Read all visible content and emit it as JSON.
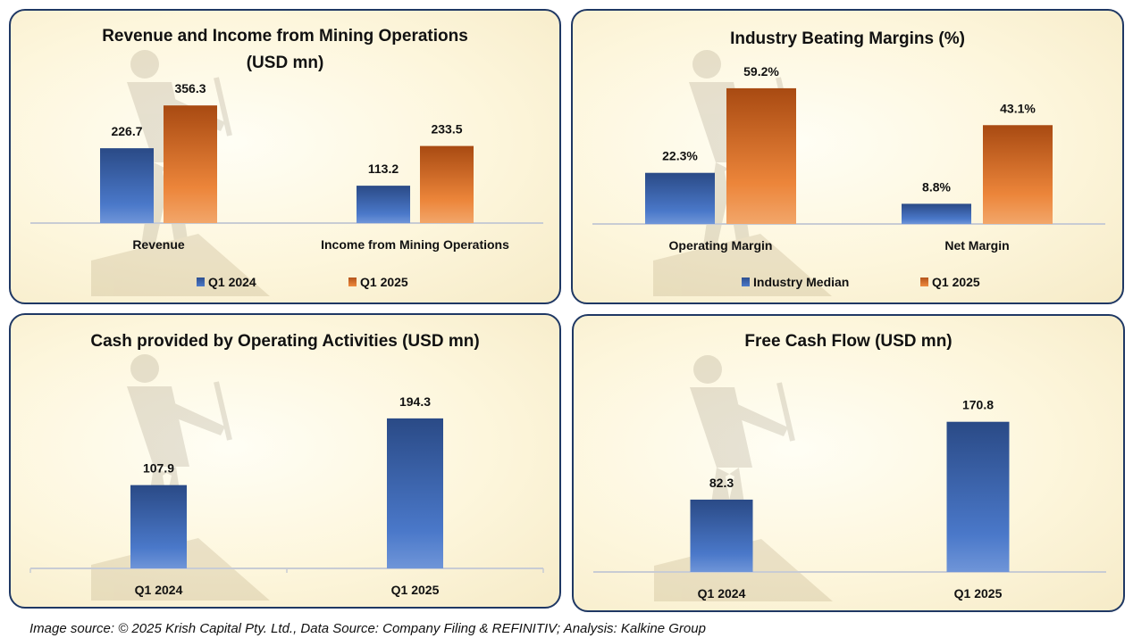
{
  "colors": {
    "blue_top": "#2a4a86",
    "blue_bottom": "#4f7fd0",
    "orange_top": "#a84a12",
    "orange_bottom": "#f09048",
    "panel_border": "#1f3864",
    "axis_line": "#c8ccd4"
  },
  "chart_data": [
    {
      "type": "bar",
      "title": "Revenue and Income from Mining Operations",
      "subtitle": "(USD mn)",
      "categories": [
        "Revenue",
        "Income from Mining Operations"
      ],
      "series": [
        {
          "name": "Q1 2024",
          "values": [
            226.7,
            113.2
          ],
          "labels": [
            "226.7",
            "113.2"
          ],
          "color": "blue"
        },
        {
          "name": "Q1 2025",
          "values": [
            356.3,
            233.5
          ],
          "labels": [
            "356.3",
            "233.5"
          ],
          "color": "orange"
        }
      ],
      "xlabel": "",
      "ylabel": "",
      "ylim": [
        0,
        400
      ],
      "grid": false,
      "legend": "bottom"
    },
    {
      "type": "bar",
      "title": "Industry Beating Margins (%)",
      "categories": [
        "Operating Margin",
        "Net Margin"
      ],
      "series": [
        {
          "name": "Industry Median",
          "values": [
            22.3,
            8.8
          ],
          "labels": [
            "22.3%",
            "8.8%"
          ],
          "color": "blue"
        },
        {
          "name": "Q1 2025",
          "values": [
            59.2,
            43.1
          ],
          "labels": [
            "59.2%",
            "43.1%"
          ],
          "color": "orange"
        }
      ],
      "xlabel": "",
      "ylabel": "",
      "ylim": [
        0,
        65
      ],
      "grid": false,
      "legend": "bottom"
    },
    {
      "type": "bar",
      "title": "Cash provided by Operating Activities (USD mn)",
      "categories": [
        "Q1 2024",
        "Q1 2025"
      ],
      "series": [
        {
          "name": "Cash provided by Operating Activities",
          "values": [
            107.9,
            194.3
          ],
          "labels": [
            "107.9",
            "194.3"
          ],
          "color": "blue"
        }
      ],
      "xlabel": "",
      "ylabel": "",
      "ylim": [
        0,
        230
      ],
      "grid": false,
      "legend": "none"
    },
    {
      "type": "bar",
      "title": "Free Cash Flow  (USD mn)",
      "categories": [
        "Q1 2024",
        "Q1 2025"
      ],
      "series": [
        {
          "name": "Free Cash Flow",
          "values": [
            82.3,
            170.8
          ],
          "labels": [
            "82.3",
            "170.8"
          ],
          "color": "blue"
        }
      ],
      "xlabel": "",
      "ylabel": "",
      "ylim": [
        0,
        205
      ],
      "grid": false,
      "legend": "none"
    }
  ],
  "footer": "Image source: © 2025 Krish Capital Pty. Ltd., Data Source: Company Filing & REFINITIV; Analysis: Kalkine Group"
}
